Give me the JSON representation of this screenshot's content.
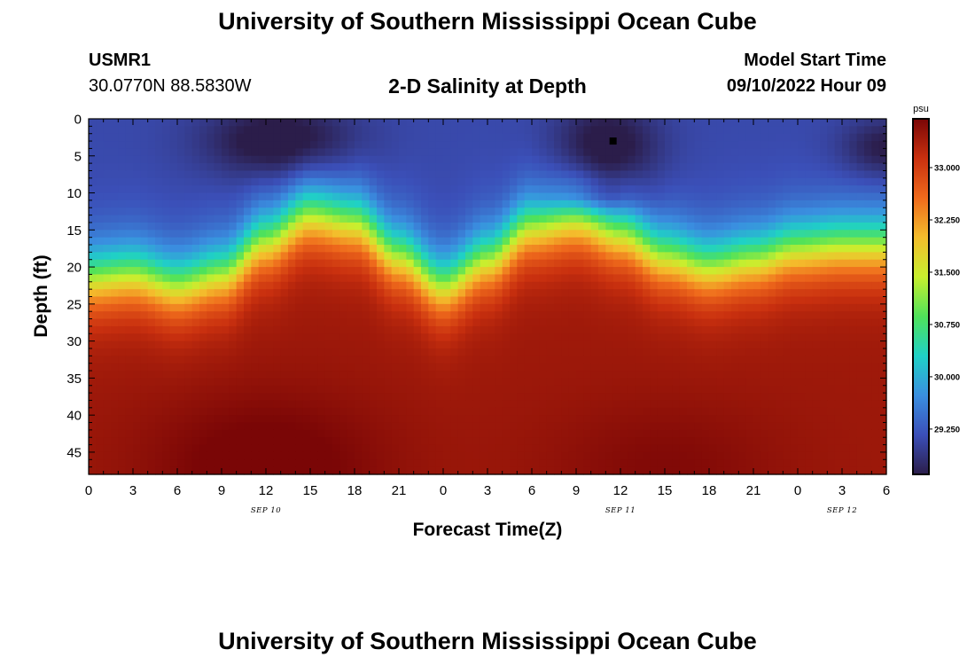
{
  "header": {
    "title": "University of Southern Mississippi Ocean Cube",
    "subtitle": "2-D Salinity at Depth",
    "station_id": "USMR1",
    "station_coords": "30.0770N  88.5830W",
    "model_start_label": "Model Start Time",
    "model_start_value": "09/10/2022 Hour 09"
  },
  "footer": {
    "title": "University of Southern Mississippi Ocean Cube"
  },
  "colors": {
    "colormap": [
      "#2b1d4a",
      "#3b4fb8",
      "#3a8fe0",
      "#1fd1c6",
      "#4fe25a",
      "#c8ef2e",
      "#f4bd2c",
      "#ef6a1c",
      "#c9300f",
      "#7a0606"
    ],
    "marker": "#000000"
  },
  "chart_data": {
    "type": "heatmap",
    "xlabel": "Forecast Time(Z)",
    "ylabel": "Depth (ft)",
    "x_tick_labels": [
      "0",
      "3",
      "6",
      "9",
      "12",
      "15",
      "18",
      "21",
      "0",
      "3",
      "6",
      "9",
      "12",
      "15",
      "18",
      "21",
      "0",
      "3",
      "6"
    ],
    "x_range_hours": [
      0,
      54
    ],
    "date_labels": [
      {
        "text": "SEP 10",
        "hour": 12
      },
      {
        "text": "SEP 11",
        "hour": 36
      },
      {
        "text": "SEP 12",
        "hour": 51
      }
    ],
    "y_tick_labels": [
      "0",
      "5",
      "10",
      "15",
      "20",
      "25",
      "30",
      "35",
      "40",
      "45"
    ],
    "y_range_ft": [
      0,
      48
    ],
    "colorbar": {
      "unit": "psu",
      "ticks": [
        "33.000",
        "32.250",
        "31.500",
        "30.750",
        "30.000",
        "29.250"
      ],
      "tick_values": [
        33.0,
        32.25,
        31.5,
        30.75,
        30.0,
        29.25
      ],
      "range": [
        28.6,
        33.7
      ]
    },
    "marker_point": {
      "hour": 35.5,
      "depth_ft": 3
    },
    "salinity_model": {
      "surface": 29.1,
      "bottom": 33.45,
      "halocline_depth_ft": [
        21.5,
        21.0,
        22.5,
        21.0,
        16.5,
        13.0,
        14.0,
        18.5,
        22.5,
        19.0,
        14.5,
        13.5,
        15.5,
        18.5,
        20.0,
        19.0,
        17.5,
        17.0,
        17.0
      ],
      "halocline_width_ft": 11,
      "fresh_patches": [
        {
          "hour": 13,
          "depth_ft": 3,
          "hour_radius": 5,
          "depth_radius": 5,
          "strength": 0.7
        },
        {
          "hour": 35,
          "depth_ft": 4,
          "hour_radius": 3.5,
          "depth_radius": 6,
          "strength": 0.7
        },
        {
          "hour": 34,
          "depth_ft": 11,
          "hour_radius": 3,
          "depth_radius": 2,
          "strength": 0.4
        },
        {
          "hour": 54,
          "depth_ft": 4,
          "hour_radius": 3,
          "depth_radius": 4,
          "strength": 0.55
        }
      ],
      "salty_patches": [
        {
          "hour": 12,
          "depth_ft": 47,
          "hour_radius": 8,
          "depth_radius": 10,
          "strength": 0.35
        },
        {
          "hour": 39,
          "depth_ft": 47,
          "hour_radius": 8,
          "depth_radius": 9,
          "strength": 0.2
        }
      ]
    }
  }
}
